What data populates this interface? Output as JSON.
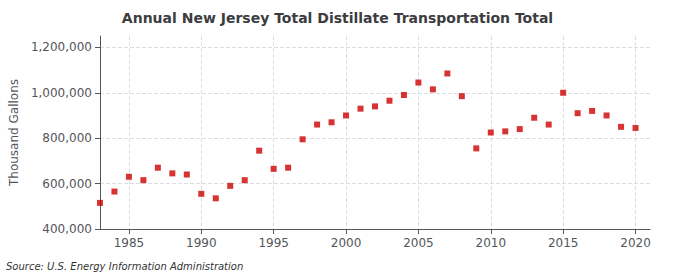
{
  "chart_data": {
    "type": "scatter",
    "title": "Annual New Jersey Total Distillate Transportation Total",
    "ylabel": "Thousand Gallons",
    "annotation": "Source: U.S. Energy Information Administration",
    "x": [
      1983,
      1984,
      1985,
      1986,
      1987,
      1988,
      1989,
      1990,
      1991,
      1992,
      1993,
      1994,
      1995,
      1996,
      1997,
      1998,
      1999,
      2000,
      2001,
      2002,
      2003,
      2004,
      2005,
      2006,
      2007,
      2008,
      2009,
      2010,
      2011,
      2012,
      2013,
      2014,
      2015,
      2016,
      2017,
      2018,
      2019,
      2020
    ],
    "values": [
      515000,
      565000,
      630000,
      615000,
      670000,
      645000,
      640000,
      555000,
      535000,
      590000,
      615000,
      745000,
      665000,
      670000,
      795000,
      860000,
      870000,
      900000,
      930000,
      940000,
      965000,
      990000,
      1045000,
      1015000,
      1085000,
      985000,
      755000,
      825000,
      830000,
      840000,
      890000,
      860000,
      1000000,
      910000,
      920000,
      900000,
      850000,
      845000
    ],
    "color": "#cc0000",
    "marker": "square",
    "xlim": [
      1983,
      2021
    ],
    "xticks": [
      1985,
      1990,
      1995,
      2000,
      2005,
      2010,
      2015,
      2020
    ],
    "ylim": [
      400000,
      1250000
    ],
    "yticks": [
      {
        "value": 400000,
        "label": "400,000"
      },
      {
        "value": 600000,
        "label": "600,000"
      },
      {
        "value": 800000,
        "label": "800,000"
      },
      {
        "value": 1000000,
        "label": "1,000,000"
      },
      {
        "value": 1200000,
        "label": "1,200,000"
      }
    ],
    "grid": true
  }
}
